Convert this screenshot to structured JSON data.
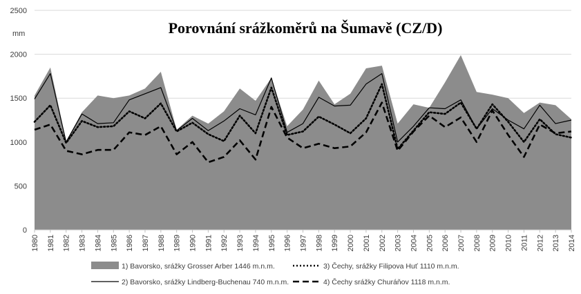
{
  "chart_data": {
    "type": "area",
    "title": "Porovnání srážkoměrů na Šumavě (CZ/D)",
    "ylabel": "mm",
    "ylim": [
      0,
      2500
    ],
    "yticks": [
      0,
      500,
      1000,
      1500,
      2000,
      2500
    ],
    "grid": true,
    "legend_position": "bottom",
    "x": [
      "1980",
      "1981",
      "1982",
      "1983",
      "1984",
      "1985",
      "1986",
      "1987",
      "1988",
      "1989",
      "1990",
      "1991",
      "1992",
      "1993",
      "1994",
      "1995",
      "1996",
      "1997",
      "1998",
      "1999",
      "2000",
      "2001",
      "2002",
      "2003",
      "2004",
      "2005",
      "2006",
      "2007",
      "2008",
      "2009",
      "2010",
      "2011",
      "2012",
      "2013",
      "2014"
    ],
    "series": [
      {
        "name": "1) Bavorsko, srážky Grosser Arber 1446 m.n.m.",
        "style": "area",
        "color": "#8c8c8c",
        "values": [
          1530,
          1850,
          1010,
          1340,
          1530,
          1500,
          1530,
          1610,
          1800,
          1140,
          1300,
          1210,
          1350,
          1610,
          1470,
          1730,
          1180,
          1370,
          1700,
          1430,
          1550,
          1840,
          1870,
          1210,
          1430,
          1390,
          1680,
          1990,
          1570,
          1540,
          1500,
          1330,
          1450,
          1420,
          1260
        ]
      },
      {
        "name": "2) Bavorsko, srážky Lindberg-Buchenau 740 m.n.m.",
        "style": "solid",
        "color": "#000000",
        "values": [
          1490,
          1780,
          1000,
          1320,
          1210,
          1220,
          1480,
          1550,
          1620,
          1130,
          1270,
          1130,
          1240,
          1380,
          1310,
          1730,
          1110,
          1210,
          1510,
          1410,
          1420,
          1660,
          1780,
          1000,
          1180,
          1390,
          1380,
          1480,
          1150,
          1380,
          1250,
          1150,
          1420,
          1210,
          1250
        ]
      },
      {
        "name": "3) Čechy, srážky Filipova Huť 1110 m.n.m.",
        "style": "dotted",
        "color": "#000000",
        "values": [
          1230,
          1420,
          990,
          1240,
          1170,
          1180,
          1350,
          1270,
          1440,
          1120,
          1220,
          1090,
          1010,
          1300,
          1100,
          1620,
          1080,
          1120,
          1290,
          1200,
          1100,
          1270,
          1660,
          920,
          1130,
          1340,
          1320,
          1450,
          1150,
          1430,
          1230,
          1000,
          1260,
          1090,
          1050
        ]
      },
      {
        "name": "4)  Čechy srážky Churáňov 1118 m.n.m.",
        "style": "dashed",
        "color": "#000000",
        "values": [
          1140,
          1200,
          900,
          860,
          910,
          910,
          1110,
          1080,
          1180,
          860,
          1000,
          770,
          830,
          1020,
          800,
          1400,
          1050,
          930,
          980,
          930,
          950,
          1110,
          1450,
          900,
          1120,
          1300,
          1170,
          1280,
          1000,
          1360,
          1080,
          830,
          1200,
          1100,
          1120
        ]
      }
    ]
  }
}
